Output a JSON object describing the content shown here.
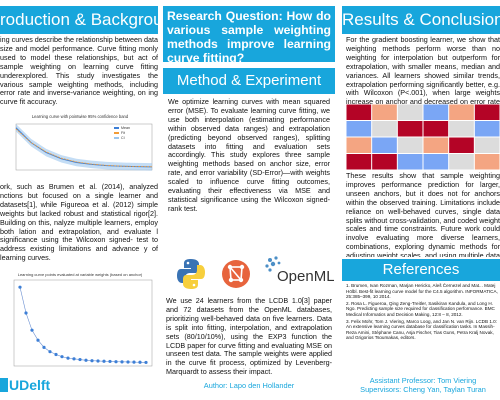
{
  "left": {
    "header": "roduction & Background",
    "intro": "ing curves describe the relationship between data size and model performance. Curve fitting monly used to model these relationships, but act of sample weighting on learning curve fitting underexplored. This study investigates the various sample weighting methods, including error rate and inverse-variance weighting, on ing curve fit accuracy.",
    "body": "ork, such as Brumen et al. (2014), analyzed nctions but focused on a single learner and datasets[1], while Figureoa et al. (2012) simple weights but lacked robust and statistical rigor[2]. Building on this, nalyze multiple learners, employ both lation and extrapolation, and evaluate l significance using the Wilcoxon signed- test to address existing limitations and advance y of learning curves.",
    "chart1_title": "Learning curve with pointwise 95% confidence band",
    "chart1_legend": [
      "Mean",
      "Fit",
      "CI"
    ],
    "chart2_title": "Learning curve points evaluated at variable weights (based on anchor)",
    "logo": "UDelft"
  },
  "middle": {
    "rq": "Research Question: How do various sample weighting methods improve learning curve fitting?",
    "header": "Method & Experiment",
    "method": "We optimize learning curves with mean squared error (MSE). To evaluate learning curve fitting, we use both interpolation (estimating performance within observed data ranges) and extrapolation (predicting beyond observed ranges), splitting datasets into fitting and evaluation sets accordingly. This study explores three sample weighting methods based on anchor size, error rate, and error variability (SD-Error)—with weights scaled to influence curve fitting outcomes, evaluating their effectiveness via MSE and statistical significance using the Wilcoxon signed-rank test.",
    "experiment": "We use 24 learners from the LCDB 1.0[3] paper and 72 datasets from the OpenML databases, prioritizing well-behaved data on five learners. Data is split into fitting, interpolation, and extrapolation sets (80/10/10%), using the EXP3 function the LCDB paper for curve fitting and evaluating MSE on unseen test data. The sample weights were applied in the curve fit process, optimized by Levenberg-Marquardt to assess their impact.",
    "logos": {
      "openml": "OpenML"
    },
    "author": "Author: Lapo den Hollander"
  },
  "right": {
    "header": "Results & Conclusion",
    "results": "For the gradient boosting learner, we show that weighting methods perform worse than no weighting for interpolation but outperform for extrapolation, with smaller means, median and variances. All learners showed similar trends, extrapolation performing significantly better, e.g. with Wilcoxon (P<.001), when large weights increase on anchor and decreased on error rate and SD-Error.",
    "conclusion": "These results show that sample weighting improves performance prediction for larger, unseen anchors, but it does not for anchors within the observed training. Limitations include reliance on well-behaved curves, single data splits without cross-validation, and coded weight scales and time constraints. Future work could involve evaluating more diverse learners, combinations, exploring dynamic methods for adjusting weight scales, and using multiple data splits for robust evaluation. Greater computational resources would enable broader analyses with more complex models and larger datasets.",
    "refs_header": "References",
    "refs": [
      "1. Brumen, Ivan Rozman, Marjan Hericko, Aleš Černezel and Mat... Matej Hölbl. Best-fit learning curve model for the C4.5 algorithm. INFORMATICA, 25:385–399, 10 2014.",
      "2. Rosa L. Figueroa, Qing Zeng-Treitler, Sasikiran Kandula, and Long H. Ngo. Predicting sample size required for classification performance. BMC Medical Informatics and Decision Making, 12:8 – 8, 2012.",
      "3. Felix Mohr, Tom J. Viering, Marco Loog, and Jan N. van Rijn. LCDB 1.0: An extensive learning curves database for classification tasks. In Massih-Reza Amini, Stéphane Canu, Asja Fischer, Tias Guns, Petra Kralj Novak, and Grigorios Tsoumakas, editors."
    ],
    "promoter": "Assistant Professor: Tom Viering",
    "supervisors": "Supervisors: Cheng Yan, Taylan Turan"
  },
  "colors": {
    "accent": "#18a6dc",
    "series_blue": "#3d7fd6",
    "series_orange": "#f29c38",
    "series_green": "#4fb04f"
  },
  "chart_data": [
    {
      "type": "line",
      "title": "Learning curve with pointwise 95% confidence band",
      "x": [
        16,
        32,
        64,
        128,
        256,
        512,
        1024,
        2048,
        4096,
        8192
      ],
      "series": [
        {
          "name": "Mean",
          "values": [
            0.42,
            0.3,
            0.22,
            0.17,
            0.14,
            0.125,
            0.115,
            0.11,
            0.107,
            0.105
          ]
        },
        {
          "name": "Fit",
          "values": [
            0.41,
            0.3,
            0.225,
            0.175,
            0.145,
            0.128,
            0.117,
            0.111,
            0.108,
            0.106
          ]
        }
      ]
    },
    {
      "type": "scatter",
      "title": "Learning curve points evaluated at variable weights (based on anchor)",
      "x": [
        1,
        2,
        3,
        4,
        5,
        6,
        7,
        8,
        9,
        10,
        11,
        12,
        13,
        14,
        15,
        16,
        17,
        18,
        19,
        20,
        21,
        22
      ],
      "values": [
        0.7,
        0.52,
        0.4,
        0.33,
        0.28,
        0.25,
        0.23,
        0.215,
        0.205,
        0.2,
        0.195,
        0.19,
        0.187,
        0.185,
        0.183,
        0.182,
        0.18,
        0.179,
        0.178,
        0.177,
        0.176,
        0.175
      ]
    },
    {
      "type": "heatmap",
      "title": "",
      "rows": 4,
      "cols": 6,
      "values": [
        [
          0.9,
          0.7,
          0.4,
          0.3,
          0.6,
          0.8
        ],
        [
          0.3,
          0.5,
          0.8,
          0.9,
          0.5,
          0.2
        ],
        [
          0.6,
          0.2,
          0.5,
          0.7,
          0.9,
          0.4
        ],
        [
          0.8,
          0.9,
          0.3,
          0.2,
          0.4,
          0.7
        ]
      ]
    }
  ]
}
